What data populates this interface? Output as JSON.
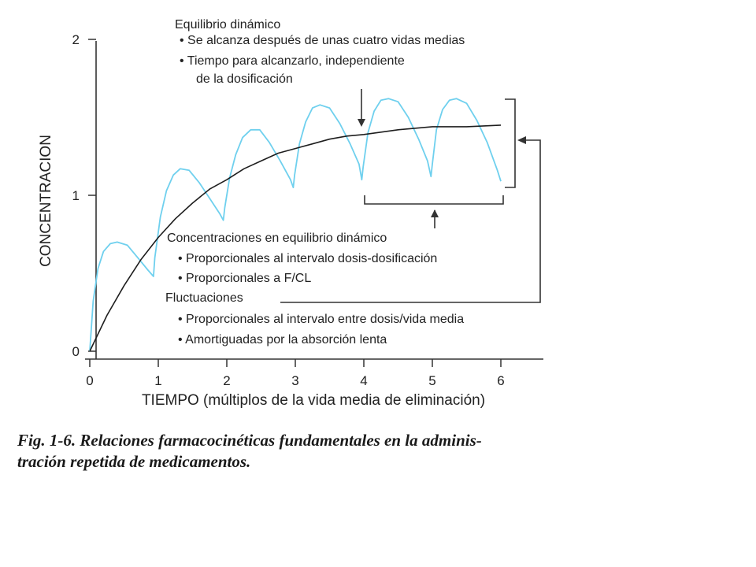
{
  "chart_data": {
    "type": "line",
    "xlabel": "TIEMPO (múltiplos de la vida media de eliminación)",
    "ylabel": "CONCENTRACION",
    "xlim": [
      0,
      6.6
    ],
    "ylim": [
      0,
      2
    ],
    "x_ticks": [
      "0",
      "1",
      "2",
      "3",
      "4",
      "5",
      "6"
    ],
    "y_ticks": [
      "0",
      "1",
      "2"
    ],
    "grid": false,
    "series": [
      {
        "name": "",
        "color": "#6fd0ee",
        "points": [
          [
            0,
            0
          ],
          [
            0.05,
            0.32
          ],
          [
            0.12,
            0.53
          ],
          [
            0.2,
            0.64
          ],
          [
            0.3,
            0.69
          ],
          [
            0.4,
            0.7
          ],
          [
            0.55,
            0.68
          ],
          [
            0.7,
            0.6
          ],
          [
            0.85,
            0.52
          ],
          [
            0.93,
            0.48
          ],
          [
            0.95,
            0.6
          ],
          [
            1.03,
            0.86
          ],
          [
            1.12,
            1.03
          ],
          [
            1.22,
            1.13
          ],
          [
            1.32,
            1.17
          ],
          [
            1.45,
            1.16
          ],
          [
            1.6,
            1.08
          ],
          [
            1.75,
            0.98
          ],
          [
            1.9,
            0.88
          ],
          [
            1.95,
            0.84
          ],
          [
            1.97,
            0.92
          ],
          [
            2.04,
            1.11
          ],
          [
            2.13,
            1.26
          ],
          [
            2.23,
            1.37
          ],
          [
            2.35,
            1.42
          ],
          [
            2.48,
            1.42
          ],
          [
            2.62,
            1.34
          ],
          [
            2.78,
            1.22
          ],
          [
            2.93,
            1.1
          ],
          [
            2.97,
            1.05
          ],
          [
            2.99,
            1.13
          ],
          [
            3.06,
            1.33
          ],
          [
            3.15,
            1.47
          ],
          [
            3.25,
            1.56
          ],
          [
            3.36,
            1.58
          ],
          [
            3.5,
            1.56
          ],
          [
            3.65,
            1.46
          ],
          [
            3.8,
            1.33
          ],
          [
            3.93,
            1.2
          ],
          [
            3.97,
            1.1
          ],
          [
            3.99,
            1.18
          ],
          [
            4.06,
            1.4
          ],
          [
            4.15,
            1.54
          ],
          [
            4.25,
            1.61
          ],
          [
            4.36,
            1.62
          ],
          [
            4.5,
            1.6
          ],
          [
            4.65,
            1.5
          ],
          [
            4.8,
            1.36
          ],
          [
            4.93,
            1.22
          ],
          [
            4.98,
            1.12
          ],
          [
            5.0,
            1.2
          ],
          [
            5.06,
            1.42
          ],
          [
            5.15,
            1.55
          ],
          [
            5.25,
            1.61
          ],
          [
            5.35,
            1.62
          ],
          [
            5.5,
            1.59
          ],
          [
            5.65,
            1.48
          ],
          [
            5.8,
            1.34
          ],
          [
            5.95,
            1.16
          ],
          [
            6.0,
            1.09
          ]
        ]
      },
      {
        "name": "",
        "color": "#1e1e1e",
        "points": [
          [
            0,
            0
          ],
          [
            0.25,
            0.23
          ],
          [
            0.5,
            0.42
          ],
          [
            0.75,
            0.59
          ],
          [
            1.0,
            0.73
          ],
          [
            1.25,
            0.85
          ],
          [
            1.5,
            0.95
          ],
          [
            1.75,
            1.04
          ],
          [
            2.0,
            1.1
          ],
          [
            2.25,
            1.17
          ],
          [
            2.5,
            1.22
          ],
          [
            2.75,
            1.27
          ],
          [
            3.0,
            1.3
          ],
          [
            3.25,
            1.33
          ],
          [
            3.5,
            1.36
          ],
          [
            3.75,
            1.38
          ],
          [
            4.0,
            1.39
          ],
          [
            4.5,
            1.42
          ],
          [
            5.0,
            1.44
          ],
          [
            5.5,
            1.44
          ],
          [
            6.0,
            1.45
          ]
        ]
      }
    ],
    "annotations": {
      "equilibrio_title": "Equilibrio dinámico",
      "equilibrio_b1": "• Se alcanza después de unas cuatro vidas medias",
      "equilibrio_b2": "• Tiempo para alcanzarlo, independiente",
      "equilibrio_b2b": "de la dosificación",
      "conc_title": "Concentraciones en equilibrio dinámico",
      "conc_b1": "• Proporcionales al intervalo dosis-dosificación",
      "conc_b2": "• Proporcionales a F/CL",
      "fluct_title": "Fluctuaciones",
      "fluct_b1": "• Proporcionales al intervalo entre dosis/vida media",
      "fluct_b2": "• Amortiguadas por la absorción lenta"
    },
    "caption": {
      "line1": "Fig. 1-6. Relaciones farmacocinéticas fundamentales en la adminis-",
      "line2": "tración repetida de medicamentos."
    }
  }
}
